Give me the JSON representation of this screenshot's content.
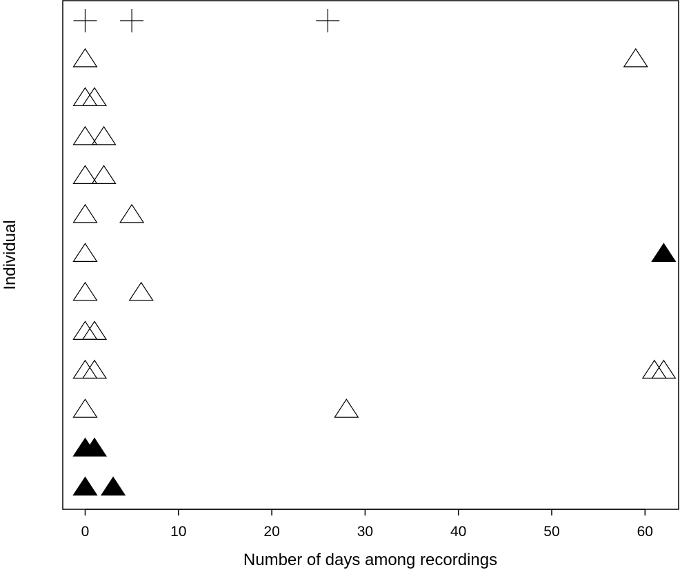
{
  "chart_data": {
    "type": "scatter",
    "title": "",
    "xlabel": "Number of days among recordings",
    "ylabel": "Individual",
    "xlim": [
      -2.4,
      63.6
    ],
    "xticks": [
      0,
      10,
      20,
      30,
      40,
      50,
      60
    ],
    "xtick_labels": [
      "0",
      "10",
      "20",
      "30",
      "40",
      "50",
      "60"
    ],
    "yticks_shown": false,
    "grid": false,
    "legend": "none",
    "individuals": [
      {
        "row": 1,
        "marker": "plus",
        "x": [
          0,
          5,
          26
        ]
      },
      {
        "row": 2,
        "marker": "open-triangle",
        "x": [
          0,
          59
        ]
      },
      {
        "row": 3,
        "marker": "open-triangle",
        "x": [
          0,
          1
        ]
      },
      {
        "row": 4,
        "marker": "open-triangle",
        "x": [
          0,
          2
        ]
      },
      {
        "row": 5,
        "marker": "open-triangle",
        "x": [
          0,
          2
        ]
      },
      {
        "row": 6,
        "marker": "open-triangle",
        "x": [
          0,
          5
        ]
      },
      {
        "row": 7,
        "marker": "mixed",
        "x": [
          0,
          62
        ],
        "filled": [
          false,
          true
        ]
      },
      {
        "row": 8,
        "marker": "open-triangle",
        "x": [
          0,
          6
        ]
      },
      {
        "row": 9,
        "marker": "open-triangle",
        "x": [
          0,
          1
        ]
      },
      {
        "row": 10,
        "marker": "open-triangle",
        "x": [
          0,
          1,
          61,
          62
        ]
      },
      {
        "row": 11,
        "marker": "open-triangle",
        "x": [
          0,
          28
        ]
      },
      {
        "row": 12,
        "marker": "filled-triangle",
        "x": [
          0,
          1
        ]
      },
      {
        "row": 13,
        "marker": "filled-triangle",
        "x": [
          0,
          3
        ]
      }
    ],
    "colors": {
      "marker": "#000000",
      "axis": "#000000",
      "background": "#ffffff"
    }
  }
}
